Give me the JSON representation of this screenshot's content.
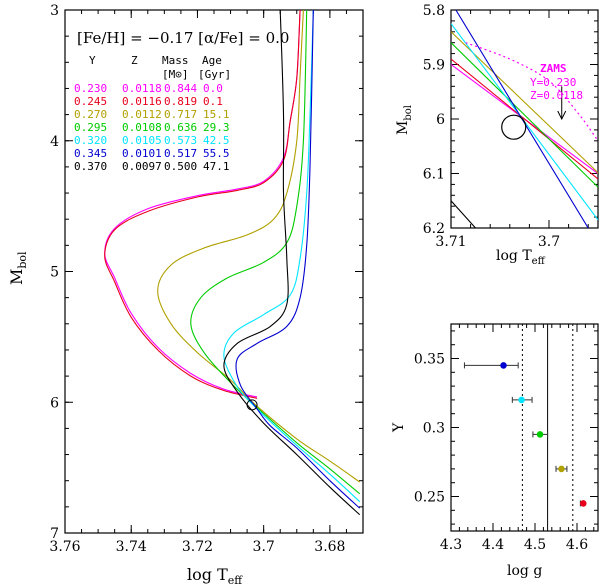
{
  "colors": {
    "magenta": "#ff00ff",
    "red": "#e8001c",
    "olive": "#b0a000",
    "green": "#00cc00",
    "cyan": "#00e5ff",
    "blue": "#0000d0",
    "black": "#000000"
  },
  "chart_data": [
    {
      "id": "main_cmd",
      "type": "line",
      "title": "[Fe/H] = −0.17 [α/Fe] = 0.0",
      "xlabel": "log T",
      "xlabel_sub": "eff",
      "ylabel": "M",
      "ylabel_sub": "bol",
      "xlim": [
        3.76,
        3.67
      ],
      "ylim": [
        7.0,
        3.0
      ],
      "xticks": [
        "3.76",
        "3.74",
        "3.72",
        "3.7",
        "3.68"
      ],
      "yticks": [
        "3",
        "4",
        "5",
        "6",
        "7"
      ],
      "table_header": {
        "y": "Y",
        "z": "Z",
        "mass": "Mass",
        "mass_unit": "[M⊙]",
        "age": "Age",
        "age_unit": "[Gyr]"
      },
      "series": [
        {
          "name": "Y=0.230",
          "y_he": "0.230",
          "z": "0.0118",
          "mass": "0.844",
          "age": "0.0",
          "color": "#ff00ff",
          "points": [
            [
              3.702,
              5.96
            ],
            [
              3.712,
              5.9
            ],
            [
              3.722,
              5.78
            ],
            [
              3.732,
              5.58
            ],
            [
              3.74,
              5.32
            ],
            [
              3.745,
              5.05
            ],
            [
              3.748,
              4.86
            ],
            [
              3.745,
              4.67
            ],
            [
              3.735,
              4.52
            ],
            [
              3.72,
              4.42
            ],
            [
              3.708,
              4.37
            ],
            [
              3.7,
              4.31
            ],
            [
              3.694,
              4.13
            ],
            [
              3.692,
              3.85
            ],
            [
              3.69,
              3.52
            ],
            [
              3.689,
              3.0
            ]
          ]
        },
        {
          "name": "Y=0.245",
          "y_he": "0.245",
          "z": "0.0116",
          "mass": "0.819",
          "age": "0.1",
          "color": "#e8001c",
          "points": [
            [
              3.702,
              5.97
            ],
            [
              3.712,
              5.91
            ],
            [
              3.722,
              5.8
            ],
            [
              3.732,
              5.6
            ],
            [
              3.74,
              5.35
            ],
            [
              3.745,
              5.08
            ],
            [
              3.748,
              4.88
            ],
            [
              3.745,
              4.68
            ],
            [
              3.735,
              4.54
            ],
            [
              3.72,
              4.43
            ],
            [
              3.708,
              4.38
            ],
            [
              3.7,
              4.32
            ],
            [
              3.694,
              4.15
            ],
            [
              3.692,
              3.85
            ],
            [
              3.69,
              3.52
            ],
            [
              3.689,
              3.0
            ]
          ]
        },
        {
          "name": "Y=0.270",
          "y_he": "0.270",
          "z": "0.0112",
          "mass": "0.717",
          "age": "15.1",
          "color": "#b0a000",
          "points": [
            [
              3.671,
              6.61
            ],
            [
              3.68,
              6.45
            ],
            [
              3.69,
              6.28
            ],
            [
              3.702,
              6.03
            ],
            [
              3.71,
              5.83
            ],
            [
              3.72,
              5.62
            ],
            [
              3.728,
              5.4
            ],
            [
              3.732,
              5.15
            ],
            [
              3.728,
              4.95
            ],
            [
              3.718,
              4.82
            ],
            [
              3.705,
              4.72
            ],
            [
              3.697,
              4.6
            ],
            [
              3.693,
              4.4
            ],
            [
              3.69,
              4.0
            ],
            [
              3.689,
              3.5
            ],
            [
              3.688,
              3.0
            ]
          ]
        },
        {
          "name": "Y=0.295",
          "y_he": "0.295",
          "z": "0.0108",
          "mass": "0.636",
          "age": "29.3",
          "color": "#00cc00",
          "points": [
            [
              3.671,
              6.7
            ],
            [
              3.68,
              6.51
            ],
            [
              3.69,
              6.31
            ],
            [
              3.702,
              6.04
            ],
            [
              3.71,
              5.85
            ],
            [
              3.718,
              5.62
            ],
            [
              3.722,
              5.4
            ],
            [
              3.719,
              5.2
            ],
            [
              3.711,
              5.05
            ],
            [
              3.7,
              4.93
            ],
            [
              3.693,
              4.78
            ],
            [
              3.69,
              4.5
            ],
            [
              3.688,
              4.0
            ],
            [
              3.687,
              3.0
            ]
          ]
        },
        {
          "name": "Y=0.320",
          "y_he": "0.320",
          "z": "0.0105",
          "mass": "0.573",
          "age": "42.5",
          "color": "#00e5ff",
          "points": [
            [
              3.671,
              6.76
            ],
            [
              3.68,
              6.55
            ],
            [
              3.69,
              6.33
            ],
            [
              3.702,
              6.05
            ],
            [
              3.708,
              5.88
            ],
            [
              3.712,
              5.65
            ],
            [
              3.709,
              5.47
            ],
            [
              3.7,
              5.33
            ],
            [
              3.692,
              5.18
            ],
            [
              3.689,
              4.9
            ],
            [
              3.687,
              4.4
            ],
            [
              3.686,
              3.8
            ],
            [
              3.685,
              3.0
            ]
          ]
        },
        {
          "name": "Y=0.345",
          "y_he": "0.345",
          "z": "0.0101",
          "mass": "0.517",
          "age": "55.5",
          "color": "#0000d0",
          "points": [
            [
              3.671,
              6.81
            ],
            [
              3.68,
              6.6
            ],
            [
              3.69,
              6.35
            ],
            [
              3.698,
              6.18
            ],
            [
              3.702,
              6.05
            ],
            [
              3.707,
              5.87
            ],
            [
              3.708,
              5.67
            ],
            [
              3.702,
              5.55
            ],
            [
              3.693,
              5.42
            ],
            [
              3.689,
              5.2
            ],
            [
              3.687,
              4.8
            ],
            [
              3.686,
              4.2
            ],
            [
              3.685,
              3.0
            ]
          ]
        },
        {
          "name": "Y=0.370",
          "y_he": "0.370",
          "z": "0.0097",
          "mass": "0.500",
          "age": "47.1",
          "color": "#000000",
          "points": [
            [
              3.671,
              6.86
            ],
            [
              3.68,
              6.65
            ],
            [
              3.69,
              6.4
            ],
            [
              3.7,
              6.16
            ],
            [
              3.708,
              5.92
            ],
            [
              3.712,
              5.72
            ],
            [
              3.708,
              5.55
            ],
            [
              3.698,
              5.42
            ],
            [
              3.693,
              5.25
            ],
            [
              3.693,
              4.9
            ],
            [
              3.694,
              4.4
            ],
            [
              3.694,
              3.8
            ],
            [
              3.695,
              3.0
            ]
          ]
        }
      ],
      "marker": {
        "shape": "circle",
        "x": 3.7035,
        "y": 6.02
      }
    },
    {
      "id": "zoom",
      "type": "line",
      "xlabel": "log T",
      "xlabel_sub": "eff",
      "ylabel": "M",
      "ylabel_sub": "bol",
      "xlim": [
        3.71,
        3.695
      ],
      "ylim": [
        6.2,
        5.8
      ],
      "xticks": [
        "3.71",
        "3.7"
      ],
      "yticks": [
        "5.8",
        "5.9",
        "6",
        "6.1",
        "6.2"
      ],
      "zams": {
        "label": "ZAMS",
        "y_label": "Y=0.230",
        "z_label": "Z=0.0118",
        "color": "#ff00ff",
        "points": [
          [
            3.7085,
            5.86
          ],
          [
            3.704,
            5.89
          ],
          [
            3.7,
            5.93
          ],
          [
            3.697,
            5.99
          ],
          [
            3.695,
            6.04
          ]
        ]
      },
      "series": [
        {
          "color": "#ff00ff",
          "points": [
            [
              3.71,
              5.9
            ],
            [
              3.695,
              6.1
            ]
          ]
        },
        {
          "color": "#e8001c",
          "points": [
            [
              3.71,
              5.89
            ],
            [
              3.695,
              6.11
            ]
          ]
        },
        {
          "color": "#b0a000",
          "points": [
            [
              3.71,
              5.84
            ],
            [
              3.6955,
              6.09
            ],
            [
              3.695,
              6.1
            ]
          ]
        },
        {
          "color": "#00cc00",
          "points": [
            [
              3.71,
              5.86
            ],
            [
              3.695,
              6.125
            ]
          ]
        },
        {
          "color": "#00e5ff",
          "points": [
            [
              3.71,
              5.825
            ],
            [
              3.695,
              6.185
            ]
          ]
        },
        {
          "color": "#0000d0",
          "points": [
            [
              3.7095,
              5.8
            ],
            [
              3.696,
              6.2
            ]
          ]
        },
        {
          "color": "#000000",
          "points": [
            [
              3.71,
              6.15
            ],
            [
              3.7075,
              6.2
            ]
          ]
        }
      ],
      "marker": {
        "shape": "circle",
        "x": 3.7036,
        "y": 6.015
      },
      "arrow": {
        "x": 3.6987,
        "y_from": 5.94,
        "y_to": 6.0
      }
    },
    {
      "id": "helium_vs_logg",
      "type": "scatter",
      "xlabel": "log g",
      "ylabel": "Y",
      "xlim": [
        4.3,
        4.65
      ],
      "ylim": [
        0.225,
        0.375
      ],
      "xticks": [
        "4.3",
        "4.4",
        "4.5",
        "4.6"
      ],
      "yticks": [
        "0.25",
        "0.3",
        "0.35"
      ],
      "vlines": {
        "solid": 4.53,
        "dotted": [
          4.47,
          4.59
        ]
      },
      "points": [
        {
          "x": 4.615,
          "y": 0.245,
          "xerr_low": 0.007,
          "xerr_high": 0.0,
          "color": "#e8001c"
        },
        {
          "x": 4.563,
          "y": 0.27,
          "xerr_low": 0.013,
          "xerr_high": 0.013,
          "color": "#b0a000"
        },
        {
          "x": 4.512,
          "y": 0.295,
          "xerr_low": 0.017,
          "xerr_high": 0.018,
          "color": "#00cc00"
        },
        {
          "x": 4.468,
          "y": 0.32,
          "xerr_low": 0.022,
          "xerr_high": 0.025,
          "color": "#00e5ff"
        },
        {
          "x": 4.425,
          "y": 0.345,
          "xerr_low": 0.093,
          "xerr_high": 0.035,
          "color": "#0000d0"
        }
      ]
    }
  ]
}
